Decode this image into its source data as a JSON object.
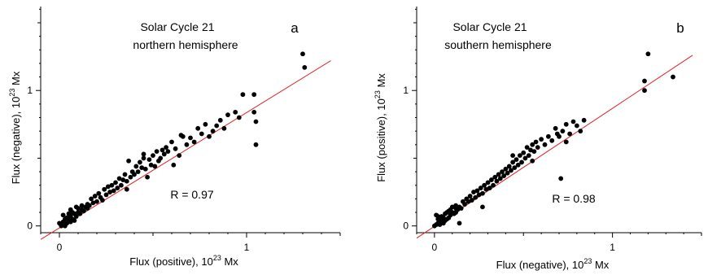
{
  "chart_data": [
    {
      "type": "scatter",
      "panel_letter": "a",
      "title_line1": "Solar Cycle 21",
      "title_line2": "northern hemisphere",
      "xlabel": "Flux (positive), 10",
      "ylabel": "Flux (negative), 10",
      "unit_exp": "23",
      "unit": " Mx",
      "xlim": [
        -0.1,
        1.5
      ],
      "ylim": [
        -0.05,
        1.62
      ],
      "xticks": [
        0,
        1
      ],
      "yticks": [
        0,
        1
      ],
      "tick_labels": [
        "0",
        "1"
      ],
      "r_label": "R = 0.97",
      "fit_line": {
        "x": [
          -0.1,
          1.45
        ],
        "y": [
          -0.1,
          1.22
        ]
      },
      "colors": {
        "points": "#000000",
        "fit": "#e02020"
      },
      "x": [
        0.0,
        0.01,
        0.02,
        0.02,
        0.03,
        0.03,
        0.04,
        0.04,
        0.05,
        0.05,
        0.06,
        0.06,
        0.07,
        0.07,
        0.08,
        0.08,
        0.09,
        0.1,
        0.1,
        0.11,
        0.12,
        0.12,
        0.13,
        0.14,
        0.15,
        0.15,
        0.16,
        0.17,
        0.18,
        0.19,
        0.2,
        0.21,
        0.22,
        0.23,
        0.24,
        0.25,
        0.26,
        0.27,
        0.28,
        0.29,
        0.3,
        0.31,
        0.32,
        0.33,
        0.34,
        0.35,
        0.36,
        0.37,
        0.38,
        0.39,
        0.4,
        0.41,
        0.42,
        0.43,
        0.44,
        0.45,
        0.46,
        0.47,
        0.48,
        0.49,
        0.5,
        0.51,
        0.52,
        0.53,
        0.54,
        0.55,
        0.56,
        0.57,
        0.58,
        0.6,
        0.62,
        0.64,
        0.66,
        0.68,
        0.7,
        0.72,
        0.74,
        0.76,
        0.78,
        0.8,
        0.82,
        0.84,
        0.86,
        0.88,
        0.9,
        0.94,
        0.96,
        0.98,
        1.04,
        1.04,
        1.05,
        1.05,
        1.3,
        1.31,
        0.03,
        0.06,
        0.09,
        0.36,
        0.45,
        0.61,
        0.65
      ],
      "y": [
        0.02,
        0.0,
        0.03,
        0.08,
        0.01,
        0.05,
        0.02,
        0.06,
        0.04,
        0.09,
        0.03,
        0.07,
        0.05,
        0.1,
        0.04,
        0.09,
        0.07,
        0.1,
        0.13,
        0.09,
        0.12,
        0.15,
        0.11,
        0.14,
        0.13,
        0.16,
        0.15,
        0.2,
        0.17,
        0.22,
        0.18,
        0.24,
        0.21,
        0.19,
        0.27,
        0.23,
        0.29,
        0.25,
        0.3,
        0.26,
        0.32,
        0.28,
        0.35,
        0.3,
        0.34,
        0.38,
        0.33,
        0.48,
        0.36,
        0.4,
        0.38,
        0.44,
        0.4,
        0.47,
        0.43,
        0.5,
        0.42,
        0.36,
        0.49,
        0.45,
        0.52,
        0.44,
        0.55,
        0.48,
        0.5,
        0.56,
        0.53,
        0.58,
        0.55,
        0.62,
        0.57,
        0.52,
        0.66,
        0.6,
        0.65,
        0.62,
        0.72,
        0.68,
        0.75,
        0.66,
        0.7,
        0.74,
        0.78,
        0.72,
        0.82,
        0.84,
        0.8,
        0.97,
        0.97,
        0.84,
        0.77,
        0.6,
        1.27,
        1.17,
        0.0,
        0.12,
        0.14,
        0.27,
        0.53,
        0.45,
        0.67
      ]
    },
    {
      "type": "scatter",
      "panel_letter": "b",
      "title_line1": "Solar Cycle 21",
      "title_line2": "southern hemisphere",
      "xlabel": "Flux (negative), 10",
      "ylabel": "Flux (positive), 10",
      "unit_exp": "23",
      "unit": " Mx",
      "xlim": [
        -0.1,
        1.5
      ],
      "ylim": [
        -0.05,
        1.62
      ],
      "xticks": [
        0,
        1
      ],
      "yticks": [
        0,
        1
      ],
      "tick_labels": [
        "0",
        "1"
      ],
      "r_label": "R = 0.98",
      "fit_line": {
        "x": [
          -0.1,
          1.45
        ],
        "y": [
          -0.09,
          1.26
        ]
      },
      "colors": {
        "points": "#000000",
        "fit": "#e02020"
      },
      "x": [
        0.0,
        0.01,
        0.01,
        0.02,
        0.02,
        0.03,
        0.03,
        0.04,
        0.04,
        0.05,
        0.05,
        0.06,
        0.06,
        0.07,
        0.07,
        0.08,
        0.08,
        0.09,
        0.1,
        0.1,
        0.11,
        0.12,
        0.12,
        0.13,
        0.14,
        0.15,
        0.16,
        0.17,
        0.18,
        0.19,
        0.2,
        0.21,
        0.22,
        0.23,
        0.24,
        0.25,
        0.26,
        0.27,
        0.28,
        0.29,
        0.3,
        0.31,
        0.32,
        0.33,
        0.34,
        0.35,
        0.36,
        0.37,
        0.38,
        0.39,
        0.4,
        0.41,
        0.42,
        0.43,
        0.44,
        0.45,
        0.46,
        0.47,
        0.48,
        0.49,
        0.5,
        0.51,
        0.52,
        0.53,
        0.54,
        0.55,
        0.56,
        0.57,
        0.58,
        0.6,
        0.62,
        0.64,
        0.66,
        0.68,
        0.7,
        0.72,
        0.74,
        0.76,
        0.78,
        0.8,
        0.82,
        0.84,
        1.18,
        1.18,
        1.2,
        1.34,
        0.02,
        0.09,
        0.14,
        0.27,
        0.44,
        0.55,
        0.69,
        0.71,
        0.74,
        0.12
      ],
      "y": [
        0.0,
        0.01,
        0.08,
        0.02,
        0.05,
        0.01,
        0.04,
        0.03,
        0.07,
        0.02,
        0.06,
        0.04,
        0.09,
        0.05,
        0.1,
        0.06,
        0.11,
        0.08,
        0.1,
        0.14,
        0.09,
        0.13,
        0.15,
        0.12,
        0.14,
        0.13,
        0.18,
        0.16,
        0.2,
        0.18,
        0.22,
        0.19,
        0.25,
        0.21,
        0.26,
        0.23,
        0.28,
        0.24,
        0.3,
        0.27,
        0.32,
        0.28,
        0.34,
        0.3,
        0.36,
        0.33,
        0.38,
        0.35,
        0.4,
        0.37,
        0.42,
        0.39,
        0.44,
        0.41,
        0.47,
        0.43,
        0.49,
        0.45,
        0.52,
        0.47,
        0.54,
        0.5,
        0.58,
        0.52,
        0.56,
        0.6,
        0.55,
        0.62,
        0.58,
        0.64,
        0.6,
        0.66,
        0.63,
        0.72,
        0.66,
        0.7,
        0.75,
        0.68,
        0.77,
        0.74,
        0.7,
        0.78,
        1.07,
        1.0,
        1.27,
        1.1,
        0.07,
        0.12,
        0.02,
        0.14,
        0.52,
        0.48,
        0.68,
        0.35,
        0.62,
        0.1
      ]
    }
  ]
}
